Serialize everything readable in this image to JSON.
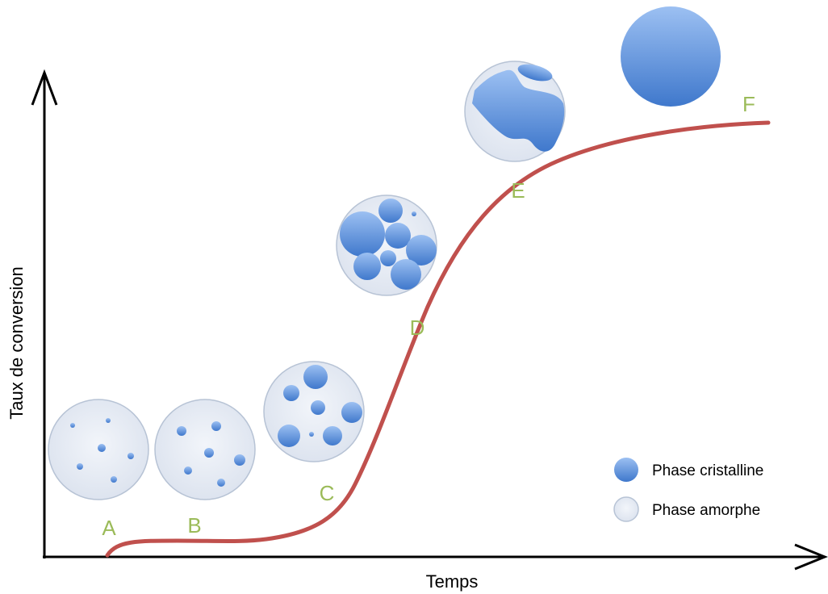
{
  "axes": {
    "x_label": "Temps",
    "y_label": "Taux de conversion"
  },
  "stages": [
    {
      "label": "A"
    },
    {
      "label": "B"
    },
    {
      "label": "C"
    },
    {
      "label": "D"
    },
    {
      "label": "E"
    },
    {
      "label": "F"
    }
  ],
  "legend": [
    {
      "label": "Phase cristalline"
    },
    {
      "label": "Phase amorphe"
    }
  ]
}
